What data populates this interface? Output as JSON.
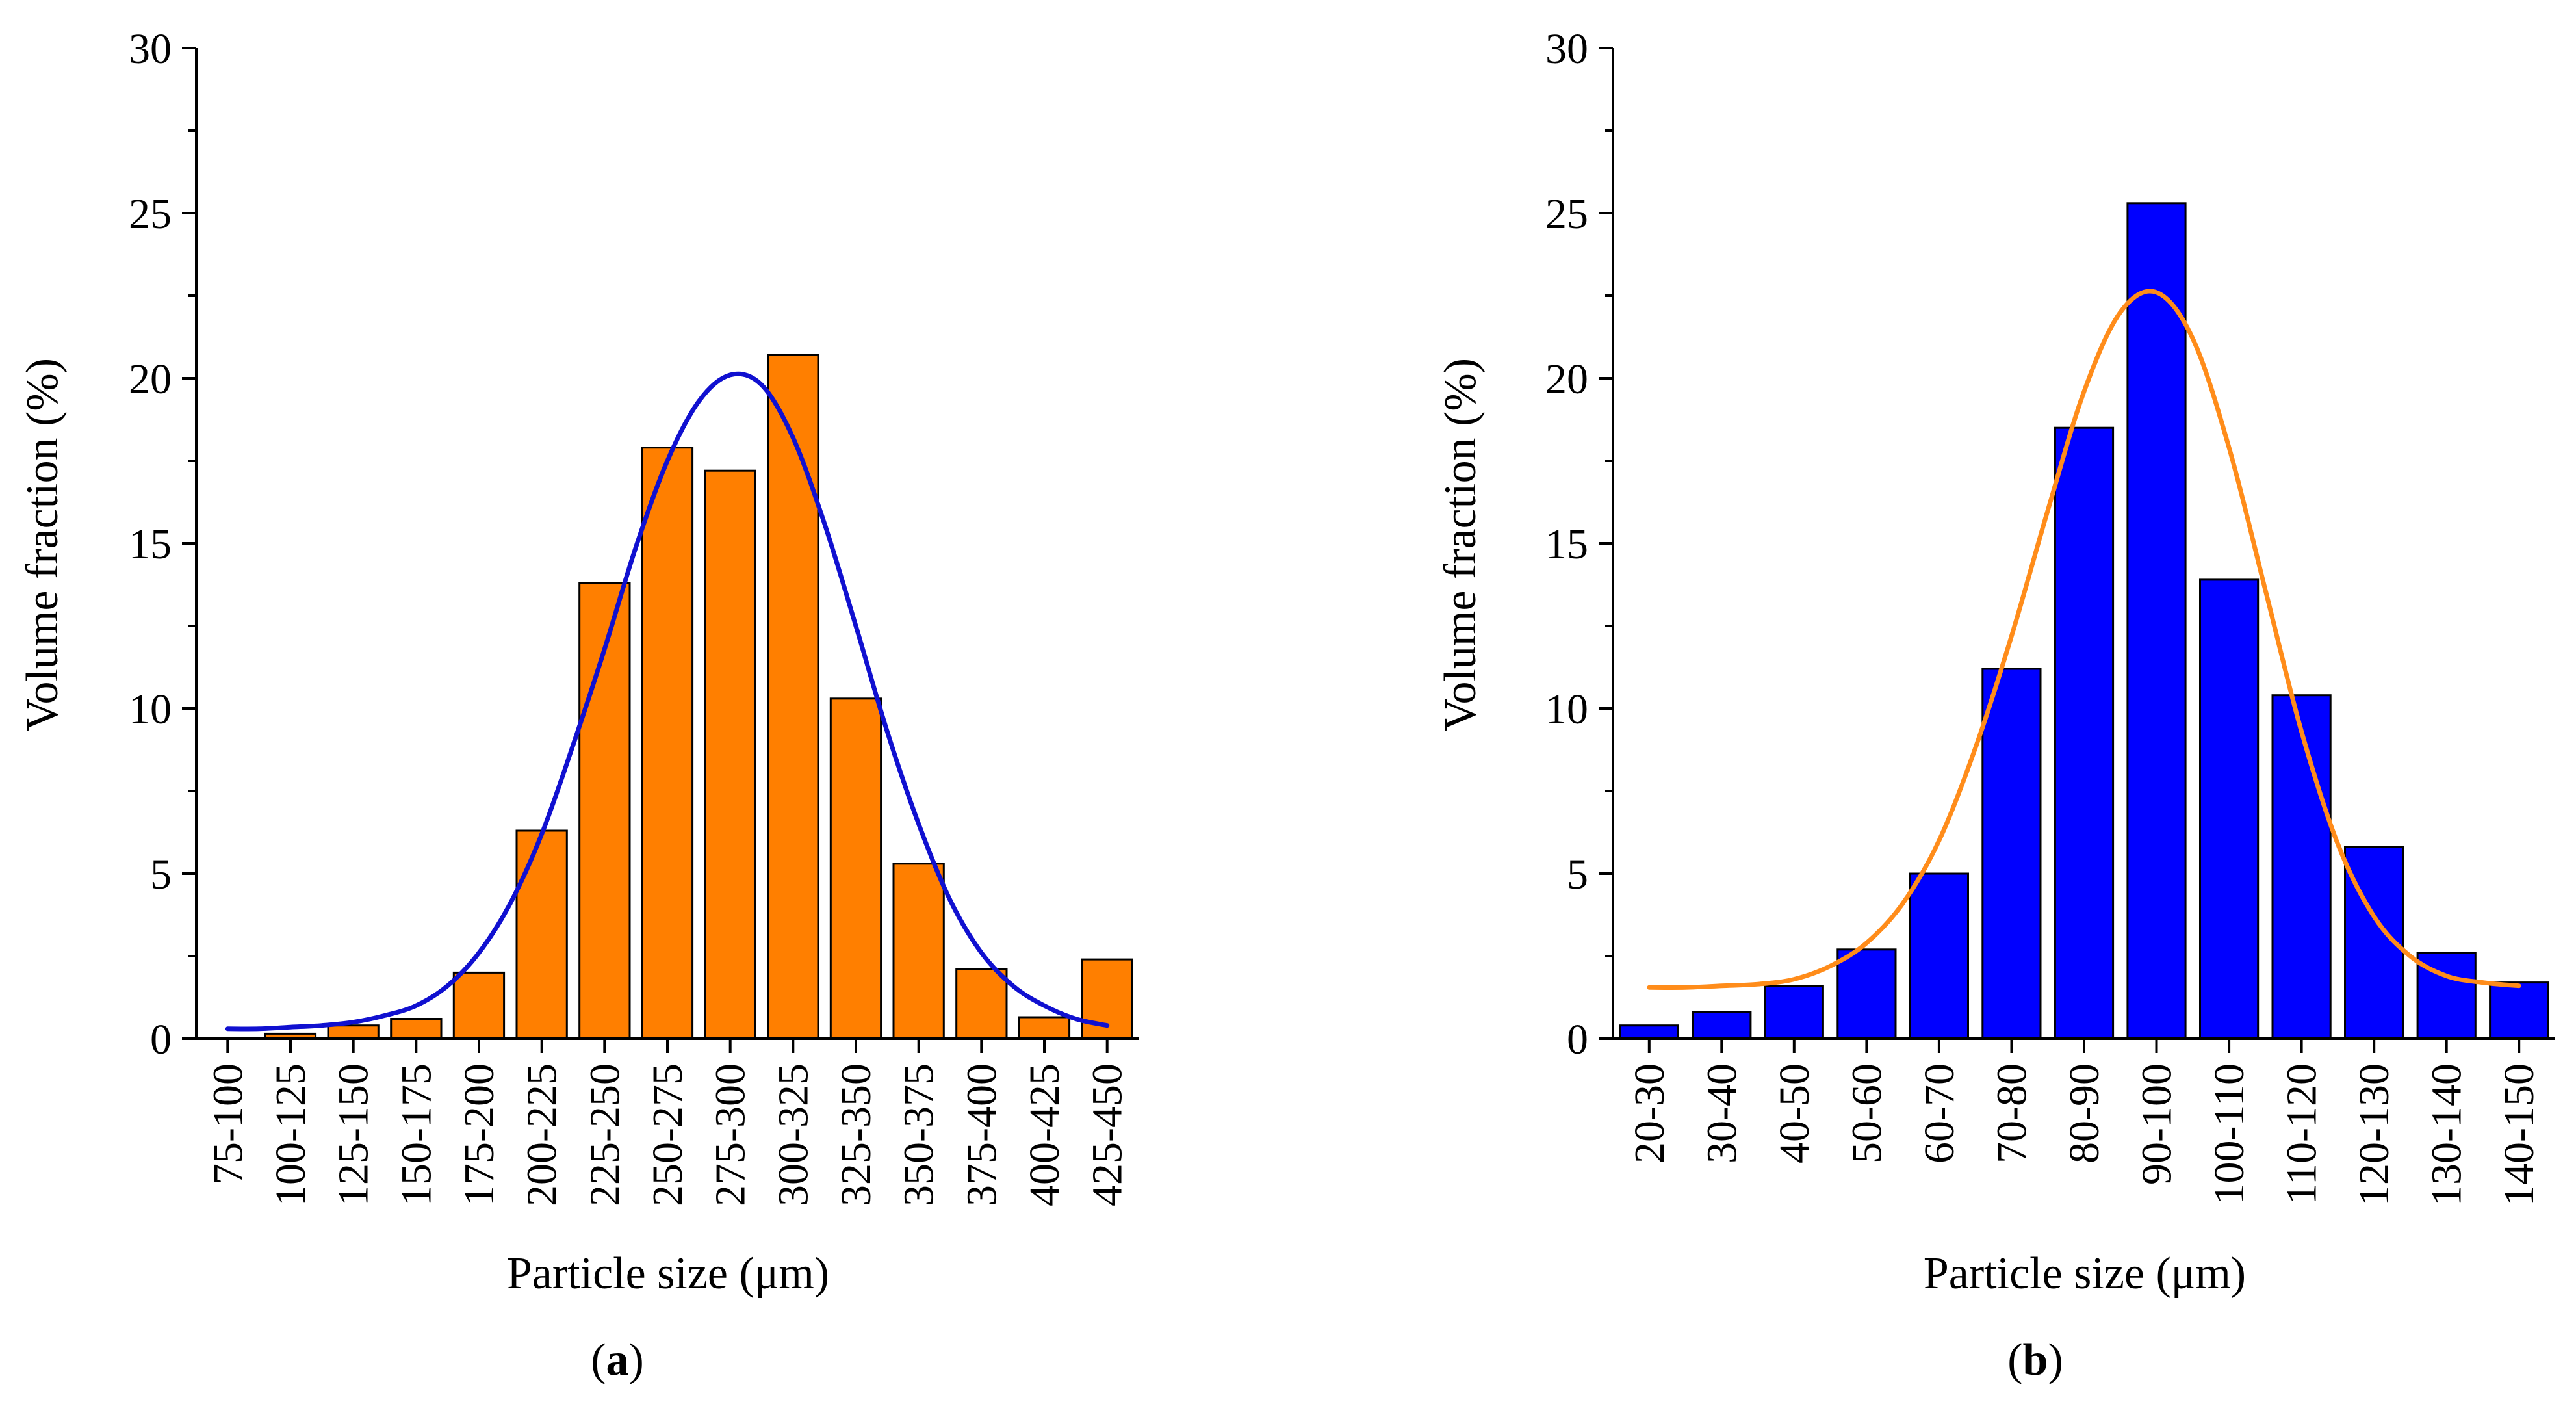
{
  "colors": {
    "axis": "#000000",
    "orange": "#ff7f00",
    "blue": "#0000ff",
    "fit_blue": "#1010d0",
    "fit_orange": "#ff8c1a"
  },
  "chart_data": [
    {
      "type": "bar",
      "panel_label": "a",
      "xlabel": "Particle size (μm)",
      "ylabel": "Volume fraction (%)",
      "ylim": [
        0,
        30
      ],
      "yticks": [
        0,
        5,
        10,
        15,
        20,
        25,
        30
      ],
      "grid": false,
      "legend": "none",
      "bar_color": "#ff7f00",
      "categories": [
        "75-100",
        "100-125",
        "125-150",
        "150-175",
        "175-200",
        "200-225",
        "225-250",
        "250-275",
        "275-300",
        "300-325",
        "325-350",
        "350-375",
        "375-400",
        "400-425",
        "425-450"
      ],
      "values": [
        0.0,
        0.15,
        0.4,
        0.6,
        2.0,
        6.3,
        13.8,
        17.9,
        17.2,
        20.7,
        10.3,
        5.3,
        2.1,
        0.65,
        2.4
      ],
      "fit_curve": {
        "type": "line",
        "color": "#1010d0",
        "x_index": [
          0,
          0.5,
          1,
          1.5,
          2,
          2.5,
          3,
          3.5,
          4,
          4.5,
          5,
          5.5,
          6,
          6.5,
          7,
          7.5,
          8,
          8.5,
          9,
          9.5,
          10,
          10.5,
          11,
          11.5,
          12,
          12.5,
          13,
          13.5,
          14
        ],
        "y": [
          0.3,
          0.3,
          0.35,
          0.4,
          0.5,
          0.7,
          1.0,
          1.6,
          2.6,
          4.1,
          6.2,
          8.9,
          11.8,
          14.9,
          17.5,
          19.3,
          20.1,
          19.8,
          18.2,
          15.6,
          12.5,
          9.3,
          6.5,
          4.2,
          2.6,
          1.6,
          1.0,
          0.6,
          0.4
        ]
      }
    },
    {
      "type": "bar",
      "panel_label": "b",
      "xlabel": "Particle size (μm)",
      "ylabel": "Volume fraction (%)",
      "ylim": [
        0,
        30
      ],
      "yticks": [
        0,
        5,
        10,
        15,
        20,
        25,
        30
      ],
      "grid": false,
      "legend": "none",
      "bar_color": "#0000ff",
      "categories": [
        "20-30",
        "30-40",
        "40-50",
        "50-60",
        "60-70",
        "70-80",
        "80-90",
        "90-100",
        "100-110",
        "110-120",
        "120-130",
        "130-140",
        "140-150"
      ],
      "values": [
        0.4,
        0.8,
        1.6,
        2.7,
        5.0,
        11.2,
        18.5,
        25.3,
        13.9,
        10.4,
        5.8,
        2.6,
        1.7
      ],
      "fit_curve": {
        "type": "line",
        "color": "#ff8c1a",
        "x_index": [
          0,
          0.5,
          1,
          1.5,
          2,
          2.5,
          3,
          3.5,
          4,
          4.5,
          5,
          5.5,
          6,
          6.5,
          7,
          7.5,
          8,
          8.5,
          9,
          9.5,
          10,
          10.5,
          11,
          11.5,
          12
        ],
        "y": [
          1.55,
          1.55,
          1.6,
          1.65,
          1.8,
          2.2,
          2.9,
          4.1,
          6.0,
          8.8,
          12.2,
          16.0,
          19.6,
          22.0,
          22.6,
          21.2,
          17.9,
          13.6,
          9.3,
          5.9,
          3.7,
          2.5,
          1.9,
          1.7,
          1.6
        ]
      }
    }
  ]
}
